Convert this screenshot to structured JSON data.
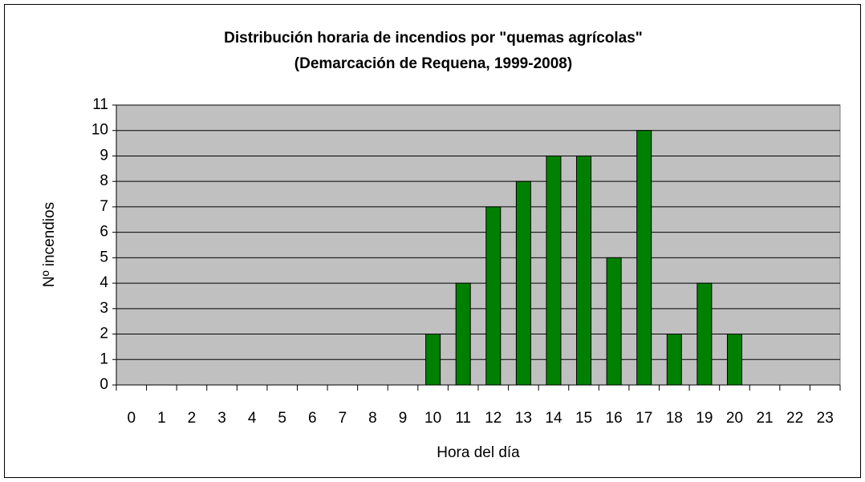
{
  "chart_data": {
    "type": "bar",
    "title": "Distribución horaria de incendios por \"quemas agrícolas\"",
    "subtitle": "(Demarcación de Requena, 1999-2008)",
    "x_label": "Hora del día",
    "y_label": "Nº incendios",
    "categories": [
      "0",
      "1",
      "2",
      "3",
      "4",
      "5",
      "6",
      "7",
      "8",
      "9",
      "10",
      "11",
      "12",
      "13",
      "14",
      "15",
      "16",
      "17",
      "18",
      "19",
      "20",
      "21",
      "22",
      "23"
    ],
    "values": [
      0,
      0,
      0,
      0,
      0,
      0,
      0,
      0,
      0,
      0,
      2,
      4,
      7,
      8,
      9,
      9,
      5,
      10,
      2,
      4,
      2,
      0,
      0,
      0
    ],
    "color": "#008000",
    "ylim": [
      0,
      11
    ],
    "yticks": [
      0,
      1,
      2,
      3,
      4,
      5,
      6,
      7,
      8,
      9,
      10,
      11
    ],
    "grid": true
  }
}
